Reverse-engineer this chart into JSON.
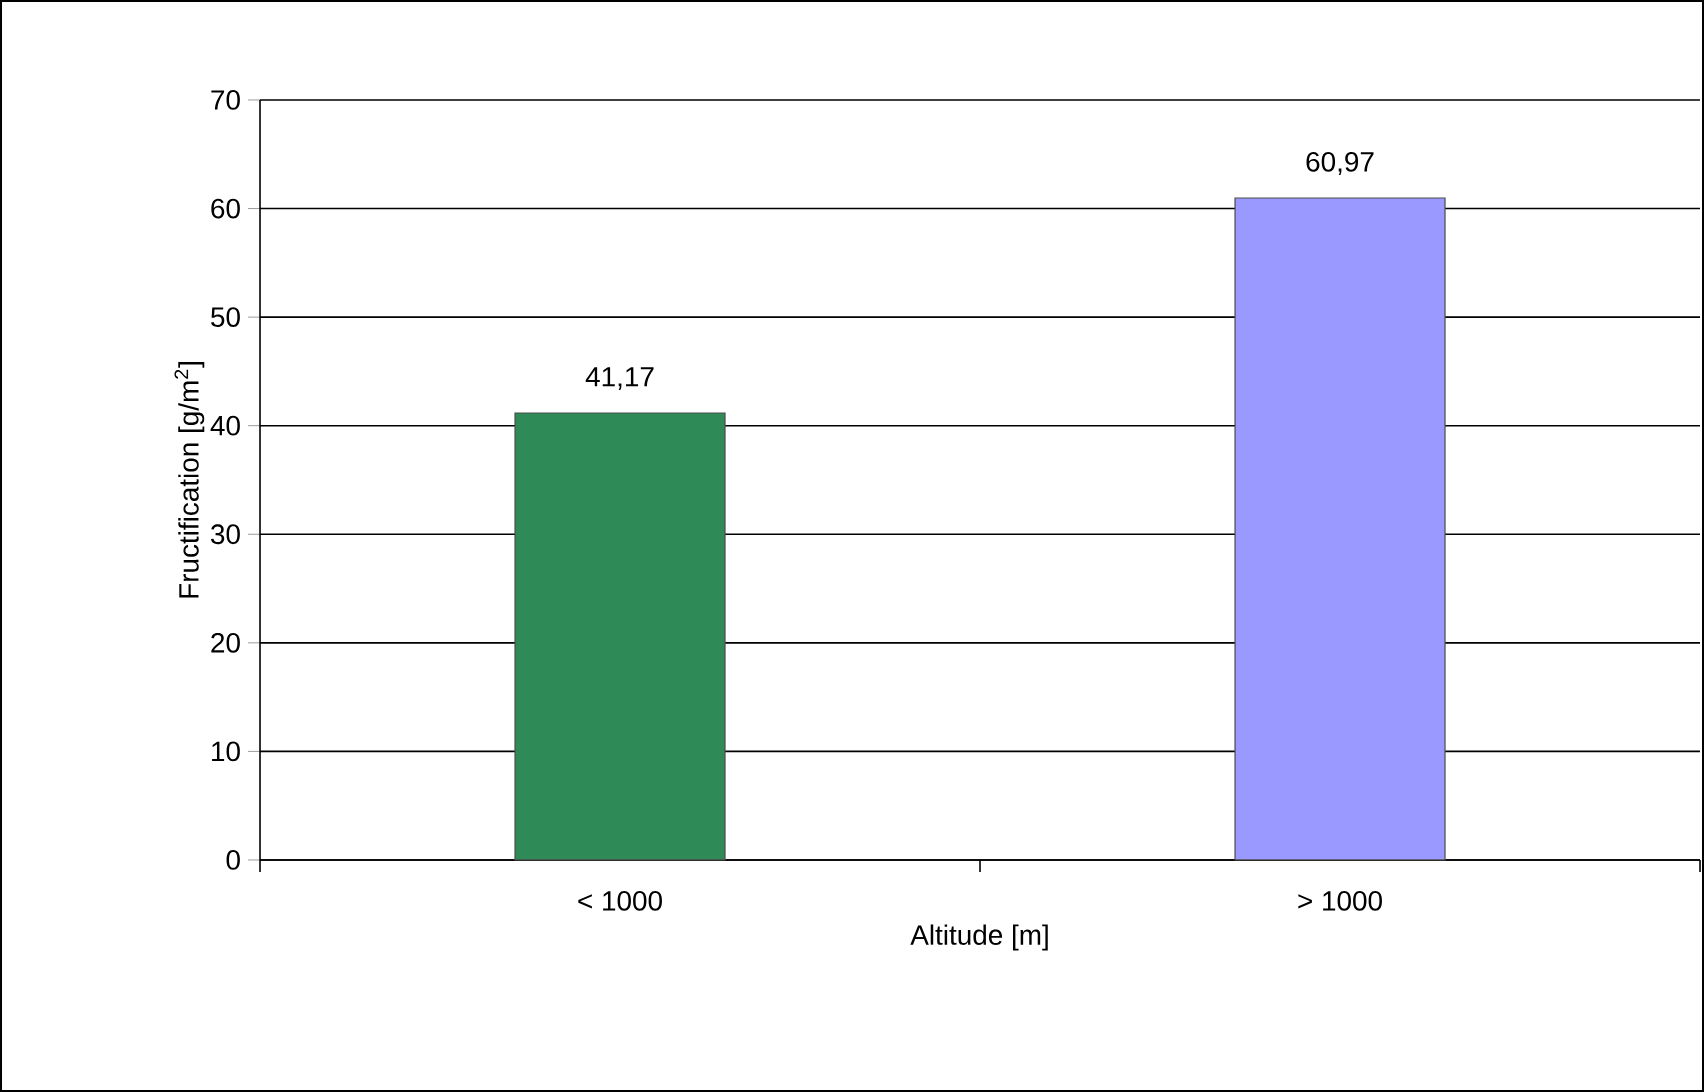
{
  "chart_data": {
    "type": "bar",
    "xlabel": "Altitude [m]",
    "ylabel": "Fructification [g/m$^{2}$]",
    "categories": [
      "< 1000",
      "> 1000"
    ],
    "values": [
      41.17,
      60.97
    ],
    "colors": [
      "#2e8b57",
      "#9999ff"
    ],
    "value_labels": [
      "41,17",
      "60,97"
    ],
    "ylim": [
      0,
      70
    ],
    "yticks": [
      0,
      10,
      20,
      30,
      40,
      50,
      60,
      70
    ],
    "grid": "y"
  }
}
